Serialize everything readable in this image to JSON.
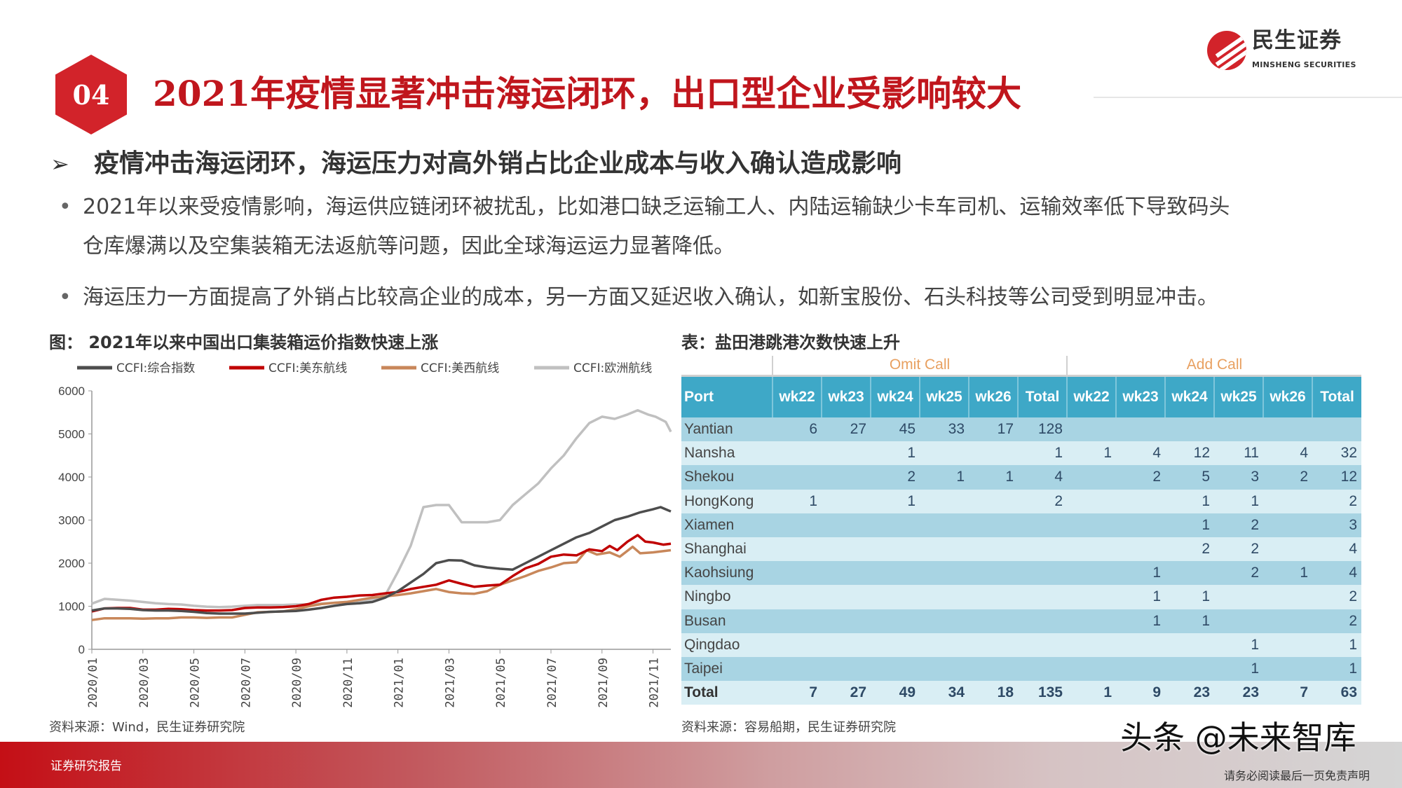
{
  "logo": {
    "cn": "民生证券",
    "en": "MINSHENG SECURITIES"
  },
  "section_number": "04",
  "title": "2021年疫情显著冲击海运闭环，出口型企业受影响较大",
  "subheading": "疫情冲击海运闭环，海运压力对高外销占比企业成本与收入确认造成影响",
  "bullets": [
    {
      "line1": "2021年以来受疫情影响，海运供应链闭环被扰乱，比如港口缺乏运输工人、内陆运输缺少卡车司机、运输效率低下导致码头",
      "line2": "仓库爆满以及空集装箱无法返航等问题，因此全球海运运力显著降低。"
    },
    {
      "line1": "海运压力一方面提高了外销占比较高企业的成本，另一方面又延迟收入确认，如新宝股份、石头科技等公司受到明显冲击。"
    }
  ],
  "chart_title": "图：  2021年以来中国出口集装箱运价指数快速上涨",
  "chart_source": "资料来源：Wind，民生证券研究院",
  "chart_data": {
    "type": "line",
    "title": "2021年以来中国出口集装箱运价指数快速上涨",
    "xlabel": "",
    "ylabel": "",
    "ylim": [
      0,
      6000
    ],
    "yticks": [
      0,
      1000,
      2000,
      3000,
      4000,
      5000,
      6000
    ],
    "xtick_labels": [
      "2020/01",
      "2020/03",
      "2020/05",
      "2020/07",
      "2020/09",
      "2020/11",
      "2021/01",
      "2021/03",
      "2021/05",
      "2021/07",
      "2021/09",
      "2021/11"
    ],
    "x_unit": "months since 2020/01",
    "xlim": [
      0,
      22.7
    ],
    "legend": "top",
    "series": [
      {
        "name": "CCFI:综合指数",
        "color": "#4d4d4d",
        "points": [
          [
            0,
            900
          ],
          [
            0.5,
            950
          ],
          [
            1,
            950
          ],
          [
            1.5,
            940
          ],
          [
            2,
            910
          ],
          [
            2.5,
            900
          ],
          [
            3,
            900
          ],
          [
            3.5,
            890
          ],
          [
            4,
            870
          ],
          [
            4.5,
            840
          ],
          [
            5,
            830
          ],
          [
            6,
            830
          ],
          [
            6.5,
            850
          ],
          [
            7,
            870
          ],
          [
            7.5,
            880
          ],
          [
            8,
            890
          ],
          [
            8.5,
            920
          ],
          [
            9,
            960
          ],
          [
            9.5,
            1010
          ],
          [
            10,
            1050
          ],
          [
            10.5,
            1070
          ],
          [
            11,
            1100
          ],
          [
            11.5,
            1200
          ],
          [
            12,
            1350
          ],
          [
            12.5,
            1550
          ],
          [
            13,
            1750
          ],
          [
            13.5,
            2000
          ],
          [
            14,
            2070
          ],
          [
            14.5,
            2060
          ],
          [
            15,
            1950
          ],
          [
            15.5,
            1900
          ],
          [
            16,
            1870
          ],
          [
            16.5,
            1850
          ],
          [
            17,
            2000
          ],
          [
            17.5,
            2150
          ],
          [
            18,
            2300
          ],
          [
            18.5,
            2450
          ],
          [
            19,
            2600
          ],
          [
            19.5,
            2700
          ],
          [
            20,
            2850
          ],
          [
            20.5,
            3000
          ],
          [
            21,
            3080
          ],
          [
            21.5,
            3180
          ],
          [
            22,
            3250
          ],
          [
            22.3,
            3300
          ],
          [
            22.5,
            3250
          ],
          [
            22.7,
            3200
          ]
        ]
      },
      {
        "name": "CCFI:美东航线",
        "color": "#c00000",
        "points": [
          [
            0,
            880
          ],
          [
            0.5,
            950
          ],
          [
            1,
            960
          ],
          [
            1.5,
            960
          ],
          [
            2,
            920
          ],
          [
            2.5,
            920
          ],
          [
            3,
            940
          ],
          [
            3.5,
            930
          ],
          [
            4,
            910
          ],
          [
            4.5,
            900
          ],
          [
            5,
            900
          ],
          [
            5.5,
            910
          ],
          [
            6,
            960
          ],
          [
            6.5,
            970
          ],
          [
            7,
            970
          ],
          [
            7.5,
            980
          ],
          [
            8,
            1000
          ],
          [
            8.5,
            1050
          ],
          [
            9,
            1150
          ],
          [
            9.5,
            1200
          ],
          [
            10,
            1220
          ],
          [
            10.5,
            1250
          ],
          [
            11,
            1260
          ],
          [
            11.5,
            1300
          ],
          [
            12,
            1330
          ],
          [
            12.5,
            1400
          ],
          [
            13,
            1450
          ],
          [
            13.5,
            1500
          ],
          [
            14,
            1600
          ],
          [
            14.5,
            1520
          ],
          [
            15,
            1450
          ],
          [
            15.5,
            1480
          ],
          [
            16,
            1500
          ],
          [
            16.5,
            1700
          ],
          [
            17,
            1880
          ],
          [
            17.5,
            1980
          ],
          [
            18,
            2150
          ],
          [
            18.5,
            2200
          ],
          [
            19,
            2180
          ],
          [
            19.5,
            2320
          ],
          [
            20,
            2280
          ],
          [
            20.3,
            2400
          ],
          [
            20.6,
            2300
          ],
          [
            21,
            2500
          ],
          [
            21.4,
            2650
          ],
          [
            21.7,
            2500
          ],
          [
            22,
            2480
          ],
          [
            22.4,
            2430
          ],
          [
            22.7,
            2450
          ]
        ]
      },
      {
        "name": "CCFI:美西航线",
        "color": "#c8875a",
        "points": [
          [
            0,
            680
          ],
          [
            0.5,
            720
          ],
          [
            1,
            720
          ],
          [
            1.5,
            720
          ],
          [
            2,
            710
          ],
          [
            2.5,
            720
          ],
          [
            3,
            720
          ],
          [
            3.5,
            740
          ],
          [
            4,
            740
          ],
          [
            4.5,
            730
          ],
          [
            5,
            740
          ],
          [
            5.5,
            740
          ],
          [
            6,
            800
          ],
          [
            6.5,
            860
          ],
          [
            7,
            870
          ],
          [
            7.5,
            880
          ],
          [
            8,
            930
          ],
          [
            8.5,
            1000
          ],
          [
            9,
            1050
          ],
          [
            9.5,
            1080
          ],
          [
            10,
            1100
          ],
          [
            10.5,
            1150
          ],
          [
            11,
            1200
          ],
          [
            11.5,
            1230
          ],
          [
            12,
            1260
          ],
          [
            12.5,
            1300
          ],
          [
            13,
            1350
          ],
          [
            13.5,
            1400
          ],
          [
            14,
            1330
          ],
          [
            14.5,
            1300
          ],
          [
            15,
            1290
          ],
          [
            15.5,
            1350
          ],
          [
            16,
            1500
          ],
          [
            16.5,
            1600
          ],
          [
            17,
            1700
          ],
          [
            17.5,
            1820
          ],
          [
            18,
            1900
          ],
          [
            18.5,
            2000
          ],
          [
            19,
            2020
          ],
          [
            19.4,
            2300
          ],
          [
            19.8,
            2200
          ],
          [
            20.3,
            2250
          ],
          [
            20.7,
            2150
          ],
          [
            21.2,
            2380
          ],
          [
            21.5,
            2230
          ],
          [
            22,
            2250
          ],
          [
            22.7,
            2300
          ]
        ]
      },
      {
        "name": "CCFI:欧洲航线",
        "color": "#c0c0c0",
        "points": [
          [
            0,
            1060
          ],
          [
            0.5,
            1170
          ],
          [
            1,
            1150
          ],
          [
            1.5,
            1130
          ],
          [
            2,
            1100
          ],
          [
            2.5,
            1070
          ],
          [
            3,
            1050
          ],
          [
            3.5,
            1040
          ],
          [
            4,
            1010
          ],
          [
            4.5,
            990
          ],
          [
            5,
            980
          ],
          [
            5.5,
            990
          ],
          [
            6,
            1010
          ],
          [
            6.5,
            1030
          ],
          [
            7,
            1030
          ],
          [
            7.5,
            1030
          ],
          [
            8,
            1040
          ],
          [
            8.5,
            1040
          ],
          [
            9,
            1060
          ],
          [
            9.5,
            1080
          ],
          [
            10,
            1100
          ],
          [
            10.5,
            1120
          ],
          [
            11,
            1160
          ],
          [
            11.5,
            1250
          ],
          [
            12,
            1800
          ],
          [
            12.5,
            2400
          ],
          [
            13,
            3300
          ],
          [
            13.5,
            3350
          ],
          [
            14,
            3350
          ],
          [
            14.5,
            2950
          ],
          [
            15,
            2950
          ],
          [
            15.5,
            2950
          ],
          [
            16,
            3000
          ],
          [
            16.5,
            3350
          ],
          [
            17,
            3600
          ],
          [
            17.5,
            3850
          ],
          [
            18,
            4200
          ],
          [
            18.5,
            4500
          ],
          [
            19,
            4900
          ],
          [
            19.5,
            5250
          ],
          [
            20,
            5400
          ],
          [
            20.5,
            5350
          ],
          [
            21,
            5450
          ],
          [
            21.4,
            5550
          ],
          [
            21.8,
            5450
          ],
          [
            22.1,
            5400
          ],
          [
            22.5,
            5280
          ],
          [
            22.7,
            5050
          ]
        ]
      }
    ]
  },
  "table_title": "表：盐田港跳港次数快速上升",
  "table_source": "资料来源：容易船期，民生证券研究院",
  "table": {
    "groups": [
      "Omit Call",
      "Add Call"
    ],
    "headers": [
      "Port",
      "wk22",
      "wk23",
      "wk24",
      "wk25",
      "wk26",
      "Total",
      "wk22",
      "wk23",
      "wk24",
      "wk25",
      "wk26",
      "Total"
    ],
    "rows": [
      [
        "Yantian",
        "6",
        "27",
        "45",
        "33",
        "17",
        "128",
        "",
        "",
        "",
        "",
        "",
        ""
      ],
      [
        "Nansha",
        "",
        "",
        "1",
        "",
        "",
        "1",
        "1",
        "4",
        "12",
        "11",
        "4",
        "32"
      ],
      [
        "Shekou",
        "",
        "",
        "2",
        "1",
        "1",
        "4",
        "",
        "2",
        "5",
        "3",
        "2",
        "12"
      ],
      [
        "HongKong",
        "1",
        "",
        "1",
        "",
        "",
        "2",
        "",
        "",
        "1",
        "1",
        "",
        "2"
      ],
      [
        "Xiamen",
        "",
        "",
        "",
        "",
        "",
        "",
        "",
        "",
        "1",
        "2",
        "",
        "3"
      ],
      [
        "Shanghai",
        "",
        "",
        "",
        "",
        "",
        "",
        "",
        "",
        "2",
        "2",
        "",
        "4"
      ],
      [
        "Kaohsiung",
        "",
        "",
        "",
        "",
        "",
        "",
        "",
        "1",
        "",
        "2",
        "1",
        "4"
      ],
      [
        "Ningbo",
        "",
        "",
        "",
        "",
        "",
        "",
        "",
        "1",
        "1",
        "",
        "",
        "2"
      ],
      [
        "Busan",
        "",
        "",
        "",
        "",
        "",
        "",
        "",
        "1",
        "1",
        "",
        "",
        "2"
      ],
      [
        "Qingdao",
        "",
        "",
        "",
        "",
        "",
        "",
        "",
        "",
        "",
        "1",
        "",
        "1"
      ],
      [
        "Taipei",
        "",
        "",
        "",
        "",
        "",
        "",
        "",
        "",
        "",
        "1",
        "",
        "1"
      ]
    ],
    "total": [
      "Total",
      "7",
      "27",
      "49",
      "34",
      "18",
      "135",
      "1",
      "9",
      "23",
      "23",
      "7",
      "63"
    ]
  },
  "footer": {
    "label": "证券研究报告",
    "watermark": "头条 @未来智库",
    "disclaimer": "请务必阅读最后一页免责声明"
  },
  "colors": {
    "brand_red": "#c0161d",
    "table_header": "#3ea8c7",
    "row_dark": "#a8d4e3",
    "row_light": "#d9eef4"
  }
}
